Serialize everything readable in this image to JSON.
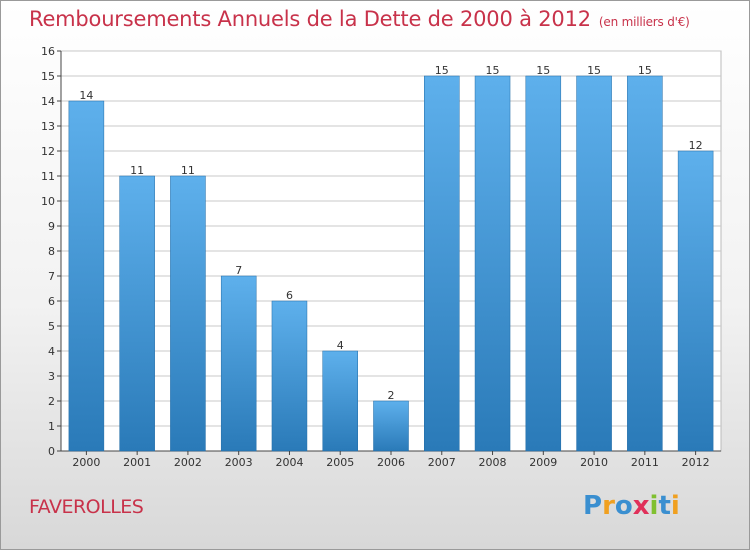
{
  "title": {
    "main": "Remboursements Annuels de la Dette de 2000 à 2012",
    "unit": "(en milliers d'€)"
  },
  "commune": "FAVEROLLES",
  "logo": {
    "text": "Proxiti",
    "letters": [
      "P",
      "r",
      "o",
      "x",
      "i",
      "t",
      "i"
    ],
    "colors": [
      "#3a8fd0",
      "#f0a020",
      "#3a8fd0",
      "#e0305a",
      "#80c030",
      "#3a8fd0",
      "#f0a020"
    ]
  },
  "colors": {
    "bar_light": "#5eb0ec",
    "bar_dark": "#2a7ab8",
    "title": "#c8324a",
    "grid": "#c8c8c8"
  },
  "chart_data": {
    "type": "bar",
    "title": "Remboursements Annuels de la Dette de 2000 à 2012",
    "subtitle": "(en milliers d'€)",
    "xlabel": "",
    "ylabel": "",
    "categories": [
      "2000",
      "2001",
      "2002",
      "2003",
      "2004",
      "2005",
      "2006",
      "2007",
      "2008",
      "2009",
      "2010",
      "2011",
      "2012"
    ],
    "values": [
      14,
      11,
      11,
      7,
      6,
      4,
      2,
      15,
      15,
      15,
      15,
      15,
      12
    ],
    "value_labels": [
      "14",
      "11",
      "11",
      "7",
      "6",
      "4",
      "2",
      "15",
      "15",
      "15",
      "15",
      "15",
      "12"
    ],
    "ylim": [
      0,
      16
    ],
    "yticks": [
      "0",
      "1",
      "2",
      "3",
      "4",
      "5",
      "6",
      "7",
      "8",
      "9",
      "10",
      "11",
      "12",
      "13",
      "14",
      "15",
      "16"
    ],
    "grid": true,
    "legend": "none"
  }
}
